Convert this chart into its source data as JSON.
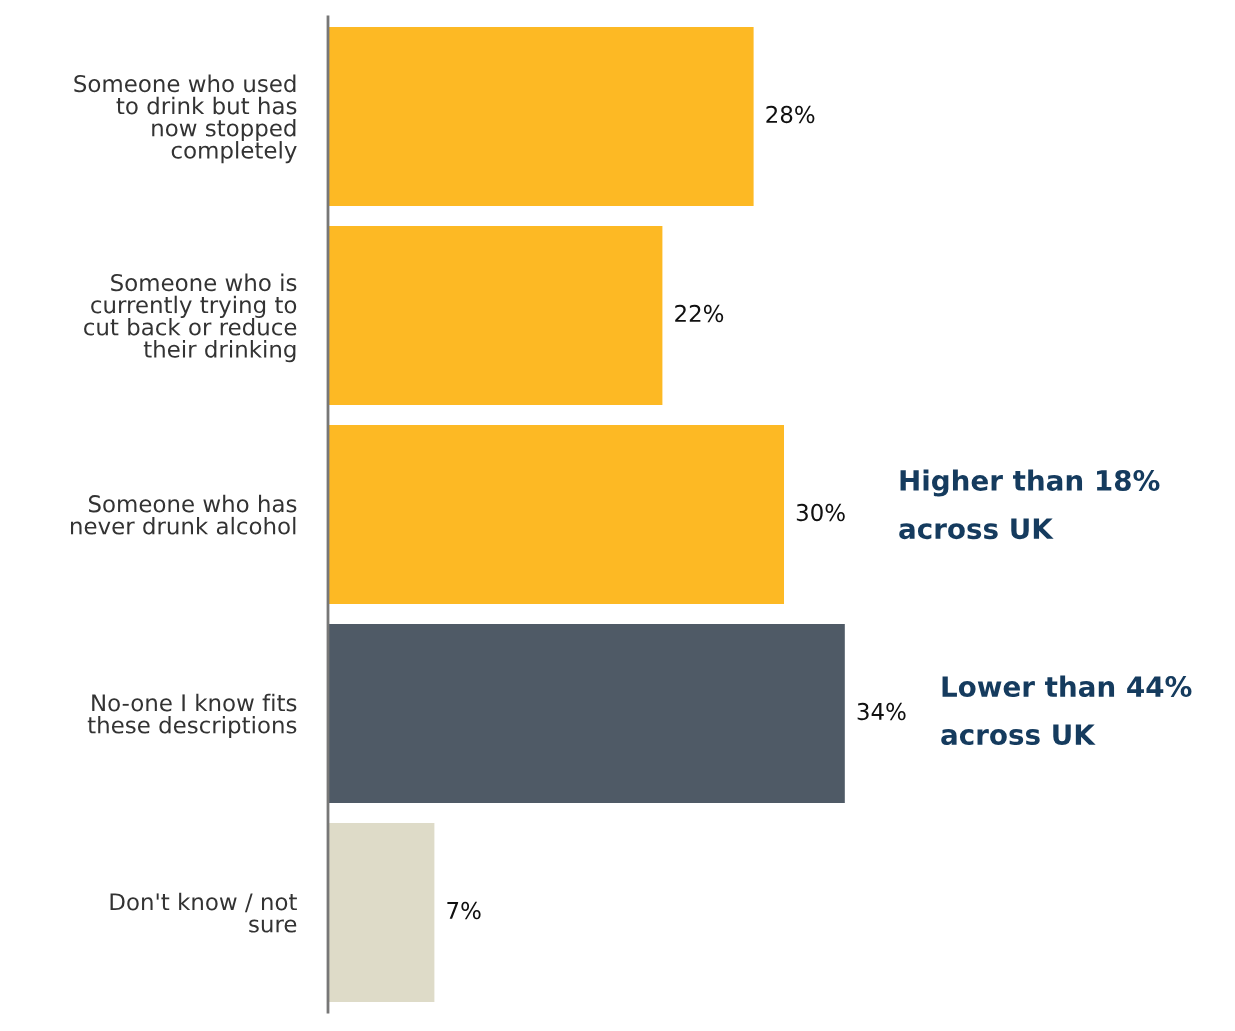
{
  "chart_data": {
    "type": "bar",
    "orientation": "horizontal",
    "categories": [
      "Someone who used\nto drink but has\nnow stopped\ncompletely",
      "Someone who is\ncurrently trying to\ncut back or reduce\ntheir drinking",
      "Someone who has\nnever drunk alcohol",
      "No-one I know fits\nthese descriptions",
      "Don't know / not\nsure"
    ],
    "values": [
      28,
      22,
      30,
      34,
      7
    ],
    "colors": [
      "#fdb924",
      "#fdb924",
      "#fdb924",
      "#4f5a66",
      "#dedbc8"
    ],
    "value_labels": [
      "28%",
      "22%",
      "30%",
      "34%",
      "7%"
    ],
    "annotations": [
      "Higher than 18%\nacross UK",
      "Lower than 44%\nacross UK"
    ],
    "grid": false,
    "legend": false
  }
}
